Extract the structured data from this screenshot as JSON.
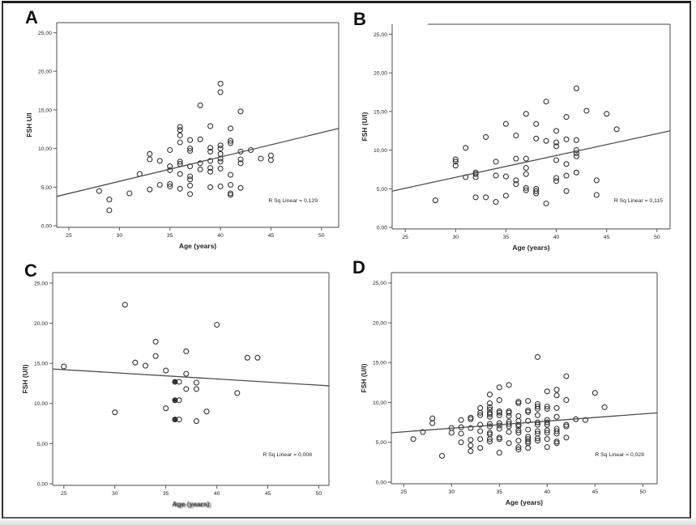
{
  "colors": {
    "point_stroke": "#333333",
    "regression_line": "#4d4d4d",
    "frame": "#6b6b6b",
    "tick": "#5a5a5a",
    "text": "#1f1f1f",
    "outer_border": "#2e2e2e",
    "bottom_strip": "#e6e6e6"
  },
  "chart_data": [
    {
      "panel": "A",
      "type": "scatter",
      "xlabel": "Age (years)",
      "ylabel": "FSH U/l",
      "rsq_label": "R Sq Linear = 0,129",
      "r_squared": 0.129,
      "xlim": [
        23.8,
        51.7
      ],
      "ylim": [
        -0.2,
        26.3
      ],
      "xticks": [
        25,
        30,
        35,
        40,
        45,
        50
      ],
      "ytick_values": [
        0,
        5,
        10,
        15,
        20,
        25
      ],
      "ytick_labels": [
        "0,00",
        "5,00",
        "10,00",
        "15,00",
        "20,00",
        "25,00"
      ],
      "regression_line": {
        "x1": 23.8,
        "y1": 3.8,
        "x2": 51.7,
        "y2": 12.6
      },
      "points": [
        [
          28,
          4.5
        ],
        [
          29,
          3.4
        ],
        [
          29,
          2.0
        ],
        [
          31,
          4.2
        ],
        [
          32,
          6.7
        ],
        [
          33,
          9.3
        ],
        [
          33,
          8.6
        ],
        [
          33,
          4.7
        ],
        [
          34,
          8.4
        ],
        [
          34,
          5.3
        ],
        [
          35,
          9.8
        ],
        [
          35,
          7.7
        ],
        [
          35,
          7.2
        ],
        [
          35,
          5.4
        ],
        [
          35,
          5.1
        ],
        [
          36,
          12.8
        ],
        [
          36,
          12.4
        ],
        [
          36,
          11.7
        ],
        [
          36,
          10.8
        ],
        [
          36,
          8.3
        ],
        [
          36,
          8.0
        ],
        [
          36,
          6.7
        ],
        [
          36,
          4.8
        ],
        [
          37,
          11.1
        ],
        [
          37,
          10.0
        ],
        [
          37,
          9.7
        ],
        [
          37,
          7.7
        ],
        [
          37,
          6.4
        ],
        [
          37,
          6.0
        ],
        [
          37,
          5.2
        ],
        [
          37,
          4.1
        ],
        [
          38,
          15.6
        ],
        [
          38,
          11.2
        ],
        [
          38,
          8.1
        ],
        [
          38,
          7.3
        ],
        [
          39,
          12.9
        ],
        [
          39,
          10.1
        ],
        [
          39,
          9.6
        ],
        [
          39,
          8.4
        ],
        [
          39,
          7.5
        ],
        [
          39,
          7.0
        ],
        [
          39,
          5.0
        ],
        [
          40,
          18.4
        ],
        [
          40,
          17.3
        ],
        [
          40,
          10.4
        ],
        [
          40,
          10.0
        ],
        [
          40,
          9.3
        ],
        [
          40,
          8.7
        ],
        [
          40,
          8.3
        ],
        [
          40,
          7.4
        ],
        [
          40,
          5.1
        ],
        [
          41,
          12.6
        ],
        [
          41,
          11.0
        ],
        [
          41,
          10.7
        ],
        [
          41,
          6.6
        ],
        [
          41,
          5.3
        ],
        [
          41,
          4.2
        ],
        [
          41,
          4.0
        ],
        [
          42,
          14.8
        ],
        [
          42,
          9.6
        ],
        [
          42,
          8.6
        ],
        [
          42,
          8.1
        ],
        [
          42,
          4.9
        ],
        [
          43,
          9.8
        ],
        [
          44,
          8.7
        ],
        [
          45,
          9.1
        ],
        [
          45,
          8.5
        ]
      ]
    },
    {
      "panel": "B",
      "type": "scatter",
      "xlabel": "Age (years)",
      "ylabel": "FSH (U/l)",
      "rsq_label": "R Sq Linear = 0,115",
      "r_squared": 0.115,
      "xlim": [
        23.7,
        51.3
      ],
      "ylim": [
        -0.2,
        26.3
      ],
      "xticks": [
        25,
        30,
        35,
        40,
        45,
        50
      ],
      "ytick_values": [
        0,
        5,
        10,
        15,
        20,
        25
      ],
      "ytick_labels": [
        "0,00",
        "5,00",
        "10,00",
        "15,00",
        "20,00",
        "25,00"
      ],
      "regression_line": {
        "x1": 23.7,
        "y1": 4.7,
        "x2": 51.3,
        "y2": 12.5
      },
      "points": [
        [
          28,
          3.5
        ],
        [
          30,
          8.8
        ],
        [
          30,
          8.5
        ],
        [
          30,
          8.0
        ],
        [
          31,
          10.3
        ],
        [
          31,
          6.5
        ],
        [
          32,
          7.1
        ],
        [
          32,
          6.9
        ],
        [
          32,
          6.5
        ],
        [
          32,
          3.9
        ],
        [
          33,
          11.7
        ],
        [
          33,
          3.9
        ],
        [
          34,
          8.5
        ],
        [
          34,
          6.7
        ],
        [
          34,
          3.3
        ],
        [
          35,
          13.4
        ],
        [
          35,
          6.6
        ],
        [
          35,
          4.1
        ],
        [
          36,
          11.9
        ],
        [
          36,
          8.9
        ],
        [
          36,
          6.1
        ],
        [
          36,
          5.6
        ],
        [
          37,
          14.7
        ],
        [
          37,
          8.9
        ],
        [
          37,
          7.7
        ],
        [
          37,
          6.9
        ],
        [
          37,
          5.1
        ],
        [
          37,
          4.8
        ],
        [
          38,
          13.4
        ],
        [
          38,
          11.5
        ],
        [
          38,
          5.0
        ],
        [
          38,
          4.7
        ],
        [
          38,
          4.4
        ],
        [
          39,
          16.3
        ],
        [
          39,
          11.2
        ],
        [
          39,
          3.1
        ],
        [
          40,
          12.5
        ],
        [
          40,
          11.0
        ],
        [
          40,
          10.5
        ],
        [
          40,
          8.7
        ],
        [
          40,
          6.4
        ],
        [
          40,
          6.0
        ],
        [
          41,
          14.3
        ],
        [
          41,
          11.4
        ],
        [
          41,
          8.2
        ],
        [
          41,
          6.7
        ],
        [
          41,
          4.7
        ],
        [
          42,
          18.0
        ],
        [
          42,
          11.3
        ],
        [
          42,
          10.0
        ],
        [
          42,
          9.6
        ],
        [
          42,
          9.2
        ],
        [
          42,
          7.1
        ],
        [
          43,
          15.1
        ],
        [
          44,
          6.1
        ],
        [
          44,
          4.2
        ],
        [
          45,
          14.7
        ],
        [
          46,
          12.7
        ]
      ]
    },
    {
      "panel": "C",
      "type": "scatter",
      "xlabel": "Age (years)",
      "xlabel_garbled": true,
      "ylabel": "FSH (U/l)",
      "rsq_label": "R Sq Linear = 0,008",
      "r_squared": 0.008,
      "xlim": [
        23.9,
        51.0
      ],
      "ylim": [
        -0.2,
        26.3
      ],
      "xticks": [
        25,
        30,
        35,
        40,
        45,
        50
      ],
      "ytick_values": [
        0,
        5,
        10,
        15,
        20,
        25
      ],
      "ytick_labels": [
        "0,00",
        "5,00",
        "10,00",
        "15,00",
        "20,00",
        "25,00"
      ],
      "regression_line": {
        "x1": 23.9,
        "y1": 14.3,
        "x2": 51.0,
        "y2": 12.2
      },
      "points": [
        [
          25,
          14.6
        ],
        [
          30,
          8.9
        ],
        [
          31,
          22.3
        ],
        [
          32,
          15.1
        ],
        [
          33,
          14.7
        ],
        [
          34,
          17.7
        ],
        [
          34,
          15.9
        ],
        [
          35,
          14.1
        ],
        [
          35,
          9.4
        ],
        [
          35.9,
          12.7,
          1
        ],
        [
          36.3,
          12.7
        ],
        [
          35.9,
          10.4,
          1
        ],
        [
          36.3,
          10.4
        ],
        [
          35.9,
          8.0,
          1
        ],
        [
          36.3,
          8.0
        ],
        [
          37,
          16.5
        ],
        [
          37,
          13.7
        ],
        [
          37,
          11.8
        ],
        [
          38,
          12.6
        ],
        [
          38,
          11.8
        ],
        [
          38,
          7.8
        ],
        [
          39,
          9.0
        ],
        [
          40,
          19.8
        ],
        [
          42,
          11.3
        ],
        [
          43,
          15.7
        ],
        [
          44,
          15.7
        ]
      ]
    },
    {
      "panel": "D",
      "type": "scatter",
      "xlabel": "Age (years)",
      "ylabel": "FSH (U/l)",
      "rsq_label": "R Sq Linear = 0,028",
      "r_squared": 0.028,
      "xlim": [
        23.7,
        51.5
      ],
      "ylim": [
        -0.2,
        26.3
      ],
      "xticks": [
        25,
        30,
        35,
        40,
        45,
        50
      ],
      "ytick_values": [
        0,
        5,
        10,
        15,
        20,
        25
      ],
      "ytick_labels": [
        "0,00",
        "5,00",
        "10,00",
        "15,00",
        "20,00",
        "25,00"
      ],
      "regression_line": {
        "x1": 23.7,
        "y1": 6.2,
        "x2": 51.5,
        "y2": 8.7
      },
      "points": [
        [
          26,
          5.4
        ],
        [
          27,
          6.3
        ],
        [
          28,
          8.0
        ],
        [
          28,
          7.4
        ],
        [
          29,
          3.3
        ],
        [
          30,
          6.8
        ],
        [
          30,
          6.2
        ],
        [
          31,
          7.8
        ],
        [
          31,
          6.9
        ],
        [
          31,
          6.1
        ],
        [
          31,
          5.0
        ],
        [
          32,
          8.1
        ],
        [
          32,
          7.9
        ],
        [
          32,
          6.8
        ],
        [
          32,
          5.3
        ],
        [
          32,
          4.6
        ],
        [
          32,
          3.9
        ],
        [
          33,
          9.3
        ],
        [
          33,
          8.7
        ],
        [
          33,
          8.4
        ],
        [
          33,
          7.2
        ],
        [
          33,
          6.4
        ],
        [
          33,
          5.4
        ],
        [
          33,
          4.3
        ],
        [
          34,
          11.0
        ],
        [
          34,
          9.9
        ],
        [
          34,
          9.4
        ],
        [
          34,
          9.1
        ],
        [
          34,
          8.7
        ],
        [
          34,
          8.5
        ],
        [
          34,
          8.2
        ],
        [
          34,
          7.3
        ],
        [
          34,
          7.0
        ],
        [
          34,
          6.2
        ],
        [
          34,
          6.0
        ],
        [
          34,
          5.4
        ],
        [
          34,
          5.1
        ],
        [
          35,
          11.9
        ],
        [
          35,
          10.3
        ],
        [
          35,
          8.9
        ],
        [
          35,
          8.7
        ],
        [
          35,
          8.4
        ],
        [
          35,
          7.4
        ],
        [
          35,
          7.1
        ],
        [
          35,
          6.7
        ],
        [
          35,
          5.6
        ],
        [
          35,
          5.4
        ],
        [
          35,
          3.7
        ],
        [
          36,
          12.2
        ],
        [
          36,
          8.9
        ],
        [
          36,
          8.7
        ],
        [
          36,
          8.3
        ],
        [
          36,
          7.6
        ],
        [
          36,
          7.3
        ],
        [
          36,
          7.0
        ],
        [
          36,
          6.3
        ],
        [
          36,
          4.9
        ],
        [
          37,
          10.1
        ],
        [
          37,
          9.9
        ],
        [
          37,
          8.3
        ],
        [
          37,
          7.7
        ],
        [
          37,
          7.2
        ],
        [
          37,
          7.0
        ],
        [
          37,
          6.5
        ],
        [
          37,
          6.2
        ],
        [
          37,
          5.2
        ],
        [
          37,
          4.4
        ],
        [
          37,
          4.1
        ],
        [
          38,
          10.2
        ],
        [
          38,
          9.0
        ],
        [
          38,
          8.8
        ],
        [
          38,
          7.7
        ],
        [
          38,
          6.6
        ],
        [
          38,
          5.7
        ],
        [
          38,
          5.4
        ],
        [
          38,
          5.1
        ],
        [
          38,
          4.9
        ],
        [
          38,
          4.3
        ],
        [
          39,
          15.7
        ],
        [
          39,
          9.8
        ],
        [
          39,
          9.5
        ],
        [
          39,
          9.2
        ],
        [
          39,
          8.4
        ],
        [
          39,
          7.5
        ],
        [
          39,
          7.2
        ],
        [
          39,
          6.4
        ],
        [
          39,
          6.1
        ],
        [
          39,
          5.5
        ],
        [
          39,
          5.2
        ],
        [
          40,
          11.4
        ],
        [
          40,
          9.5
        ],
        [
          40,
          9.2
        ],
        [
          40,
          7.8
        ],
        [
          40,
          7.5
        ],
        [
          40,
          7.2
        ],
        [
          40,
          6.5
        ],
        [
          40,
          6.2
        ],
        [
          40,
          5.4
        ],
        [
          40,
          4.4
        ],
        [
          41,
          11.6
        ],
        [
          41,
          10.9
        ],
        [
          41,
          9.3
        ],
        [
          41,
          8.2
        ],
        [
          41,
          6.7
        ],
        [
          41,
          6.4
        ],
        [
          41,
          6.1
        ],
        [
          41,
          5.1
        ],
        [
          41,
          4.9
        ],
        [
          42,
          13.3
        ],
        [
          42,
          10.3
        ],
        [
          42,
          7.2
        ],
        [
          42,
          7.0
        ],
        [
          42,
          5.6
        ],
        [
          43,
          7.9
        ],
        [
          44,
          7.8
        ],
        [
          45,
          11.2
        ],
        [
          46,
          9.4
        ]
      ]
    }
  ]
}
